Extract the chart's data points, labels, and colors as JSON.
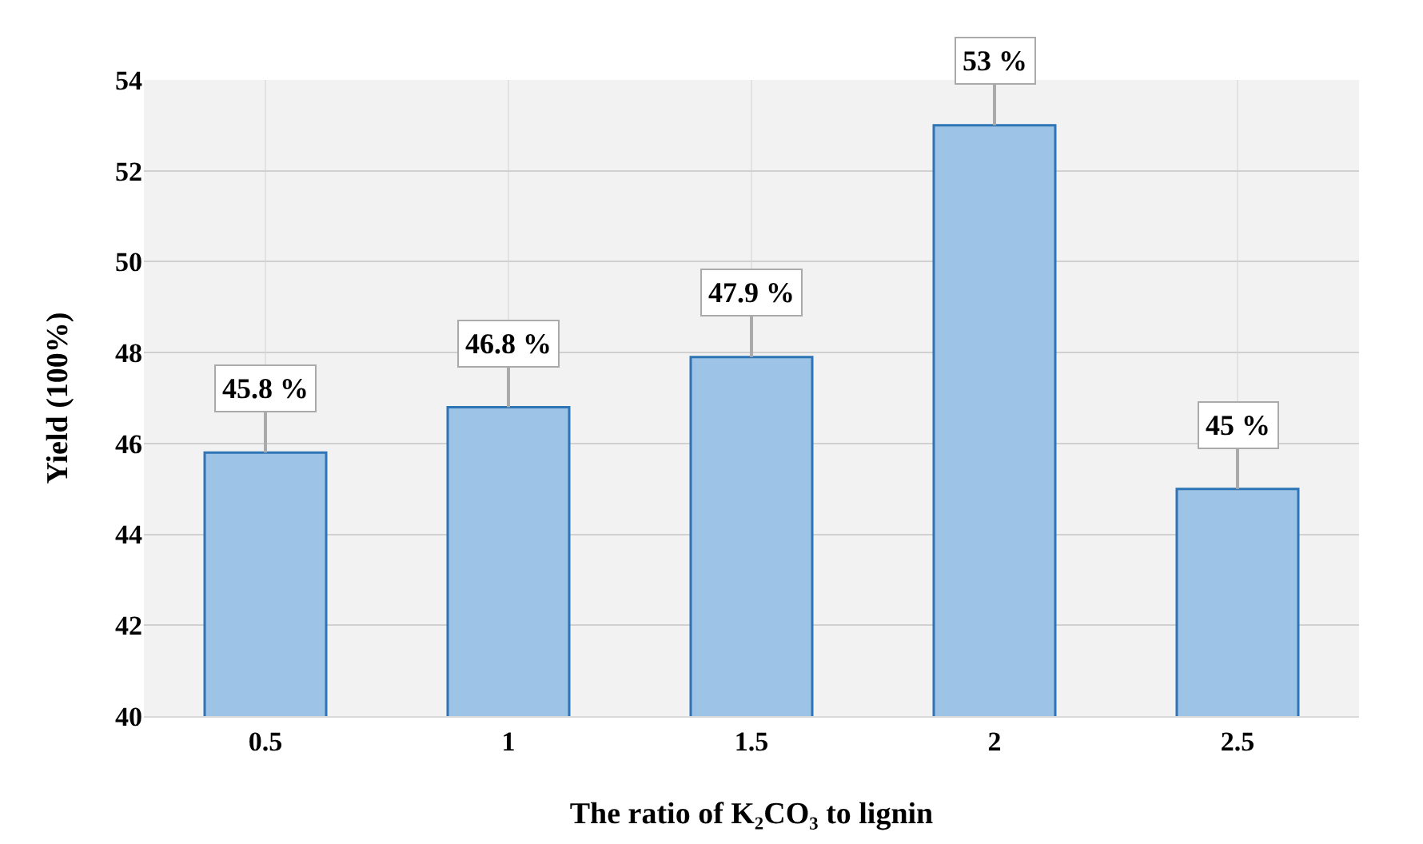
{
  "chart_data": {
    "type": "bar",
    "xlabel": "The ratio of K₂CO₃ to lignin",
    "ylabel": "Yield (100%)",
    "categories": [
      "0.5",
      "1",
      "1.5",
      "2",
      "2.5"
    ],
    "values": [
      45.8,
      46.8,
      47.9,
      53,
      45
    ],
    "value_labels": [
      "45.8 %",
      "46.8 %",
      "47.9 %",
      "53 %",
      "45 %"
    ],
    "color": "#9dc3e6",
    "ylim": [
      40,
      54
    ],
    "yticks": [
      40,
      42,
      44,
      46,
      48,
      50,
      52,
      54
    ],
    "grid": true,
    "legend": false
  }
}
